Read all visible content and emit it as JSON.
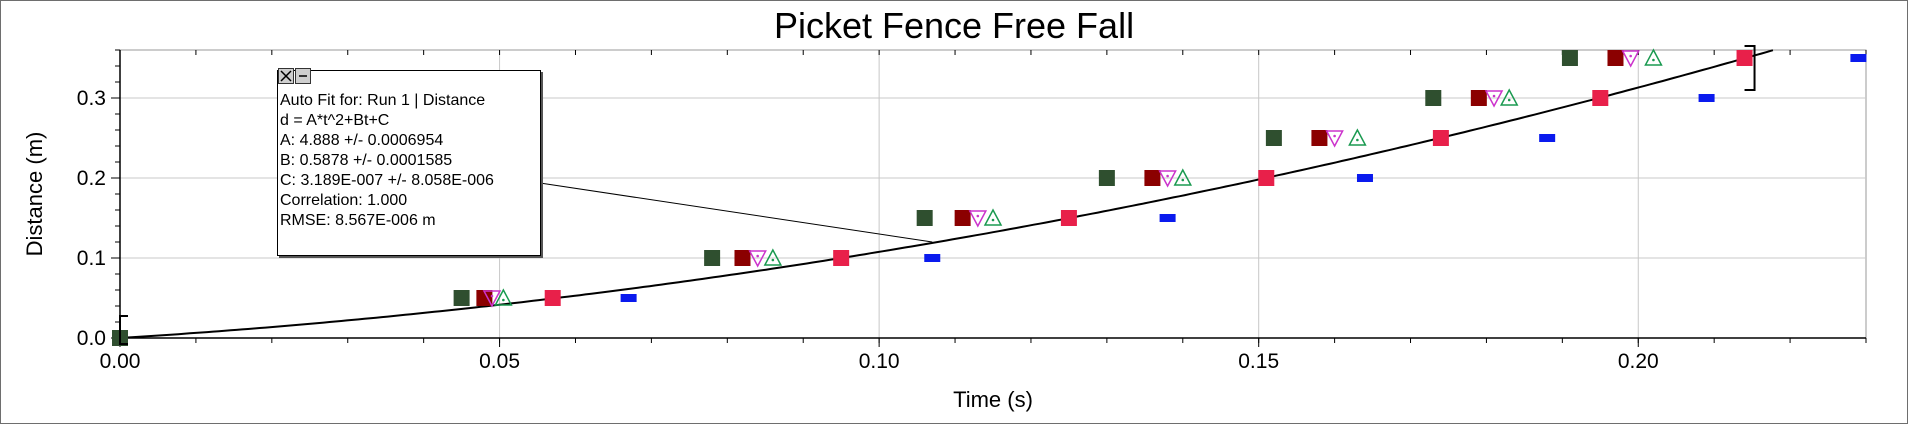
{
  "chart_data": {
    "type": "scatter",
    "title": "Picket Fence Free Fall",
    "xlabel": "Time (s)",
    "ylabel": "Distance (m)",
    "xlim": [
      0,
      0.23
    ],
    "ylim": [
      0,
      0.36
    ],
    "x_ticks": [
      "0.00",
      "0.05",
      "0.10",
      "0.15",
      "0.20"
    ],
    "y_ticks": [
      "0.0",
      "0.1",
      "0.2",
      "0.3"
    ],
    "grid": true,
    "series": [
      {
        "marker": "square",
        "color": "#2f4f2f",
        "x": [
          0.0,
          0.045,
          0.078,
          0.106,
          0.13,
          0.152,
          0.173,
          0.191
        ],
        "y": [
          0.0,
          0.05,
          0.1,
          0.15,
          0.2,
          0.25,
          0.3,
          0.35
        ]
      },
      {
        "marker": "square",
        "color": "#8b0000",
        "x": [
          0.048,
          0.082,
          0.111,
          0.136,
          0.158,
          0.179,
          0.197
        ],
        "y": [
          0.05,
          0.1,
          0.15,
          0.2,
          0.25,
          0.3,
          0.35
        ]
      },
      {
        "marker": "triangle-down",
        "color": "#cc33cc",
        "x": [
          0.049,
          0.084,
          0.113,
          0.138,
          0.16,
          0.181,
          0.199
        ],
        "y": [
          0.05,
          0.1,
          0.15,
          0.2,
          0.25,
          0.3,
          0.35
        ]
      },
      {
        "marker": "triangle-up",
        "color": "#1a9a50",
        "x": [
          0.0505,
          0.086,
          0.115,
          0.14,
          0.163,
          0.183,
          0.202
        ],
        "y": [
          0.05,
          0.1,
          0.15,
          0.2,
          0.25,
          0.3,
          0.35
        ]
      },
      {
        "marker": "square",
        "color": "#e8204a",
        "x": [
          0.057,
          0.095,
          0.125,
          0.151,
          0.174,
          0.195,
          0.214
        ],
        "y": [
          0.05,
          0.1,
          0.15,
          0.2,
          0.25,
          0.3,
          0.35
        ]
      },
      {
        "marker": "dash",
        "color": "#0a1aee",
        "x": [
          0.067,
          0.107,
          0.138,
          0.164,
          0.188,
          0.209,
          0.229
        ],
        "y": [
          0.05,
          0.1,
          0.15,
          0.2,
          0.25,
          0.3,
          0.35
        ]
      }
    ],
    "fit": {
      "A": 4.888,
      "B": 0.5878,
      "C": 3.189e-07,
      "x_range": [
        0,
        0.23
      ]
    },
    "annotation_target": {
      "x": 0.107,
      "y": 0.12
    }
  },
  "fit_box": {
    "lines": [
      "Auto Fit for: Run 1 | Distance",
      "d = A*t^2+Bt+C",
      "A: 4.888 +/- 0.0006954",
      "B: 0.5878 +/- 0.0001585",
      "C: 3.189E-007 +/- 8.058E-006",
      "Correlation: 1.000",
      "RMSE: 8.567E-006 m"
    ]
  }
}
